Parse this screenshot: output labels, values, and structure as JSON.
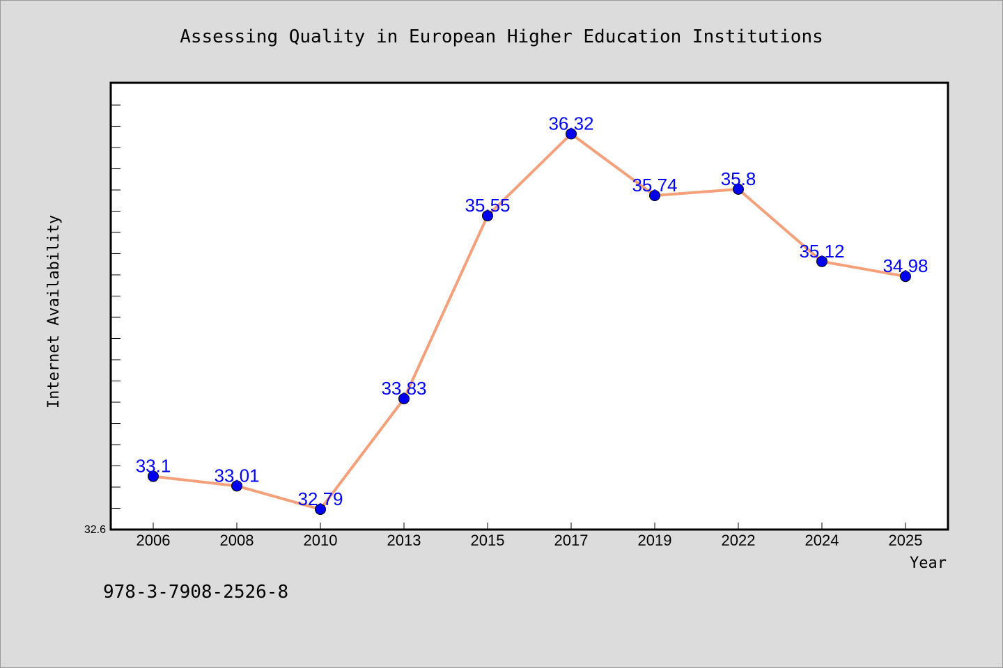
{
  "footer": {
    "isbn": "978-3-7908-2526-8"
  },
  "chart_data": {
    "type": "line",
    "title": "Assessing Quality in European Higher Education Institutions",
    "xlabel": "Year",
    "ylabel": "Internet Availability",
    "categories": [
      "2006",
      "2008",
      "2010",
      "2013",
      "2015",
      "2017",
      "2019",
      "2022",
      "2024",
      "2025"
    ],
    "series": [
      {
        "values": [
          33.1,
          33.01,
          32.79,
          33.83,
          35.55,
          36.32,
          35.74,
          35.8,
          35.12,
          34.98
        ],
        "labels": [
          "33.1",
          "33.01",
          "32.79",
          "33.83",
          "35.55",
          "36.32",
          "35.74",
          "35.8",
          "35.12",
          "34.98"
        ],
        "line_color": "#f4a07a",
        "marker_color": "#0000ee"
      }
    ],
    "ylim": [
      32.6,
      36.8
    ],
    "ytick_label": "32.6",
    "grid": false,
    "legend": "none"
  }
}
